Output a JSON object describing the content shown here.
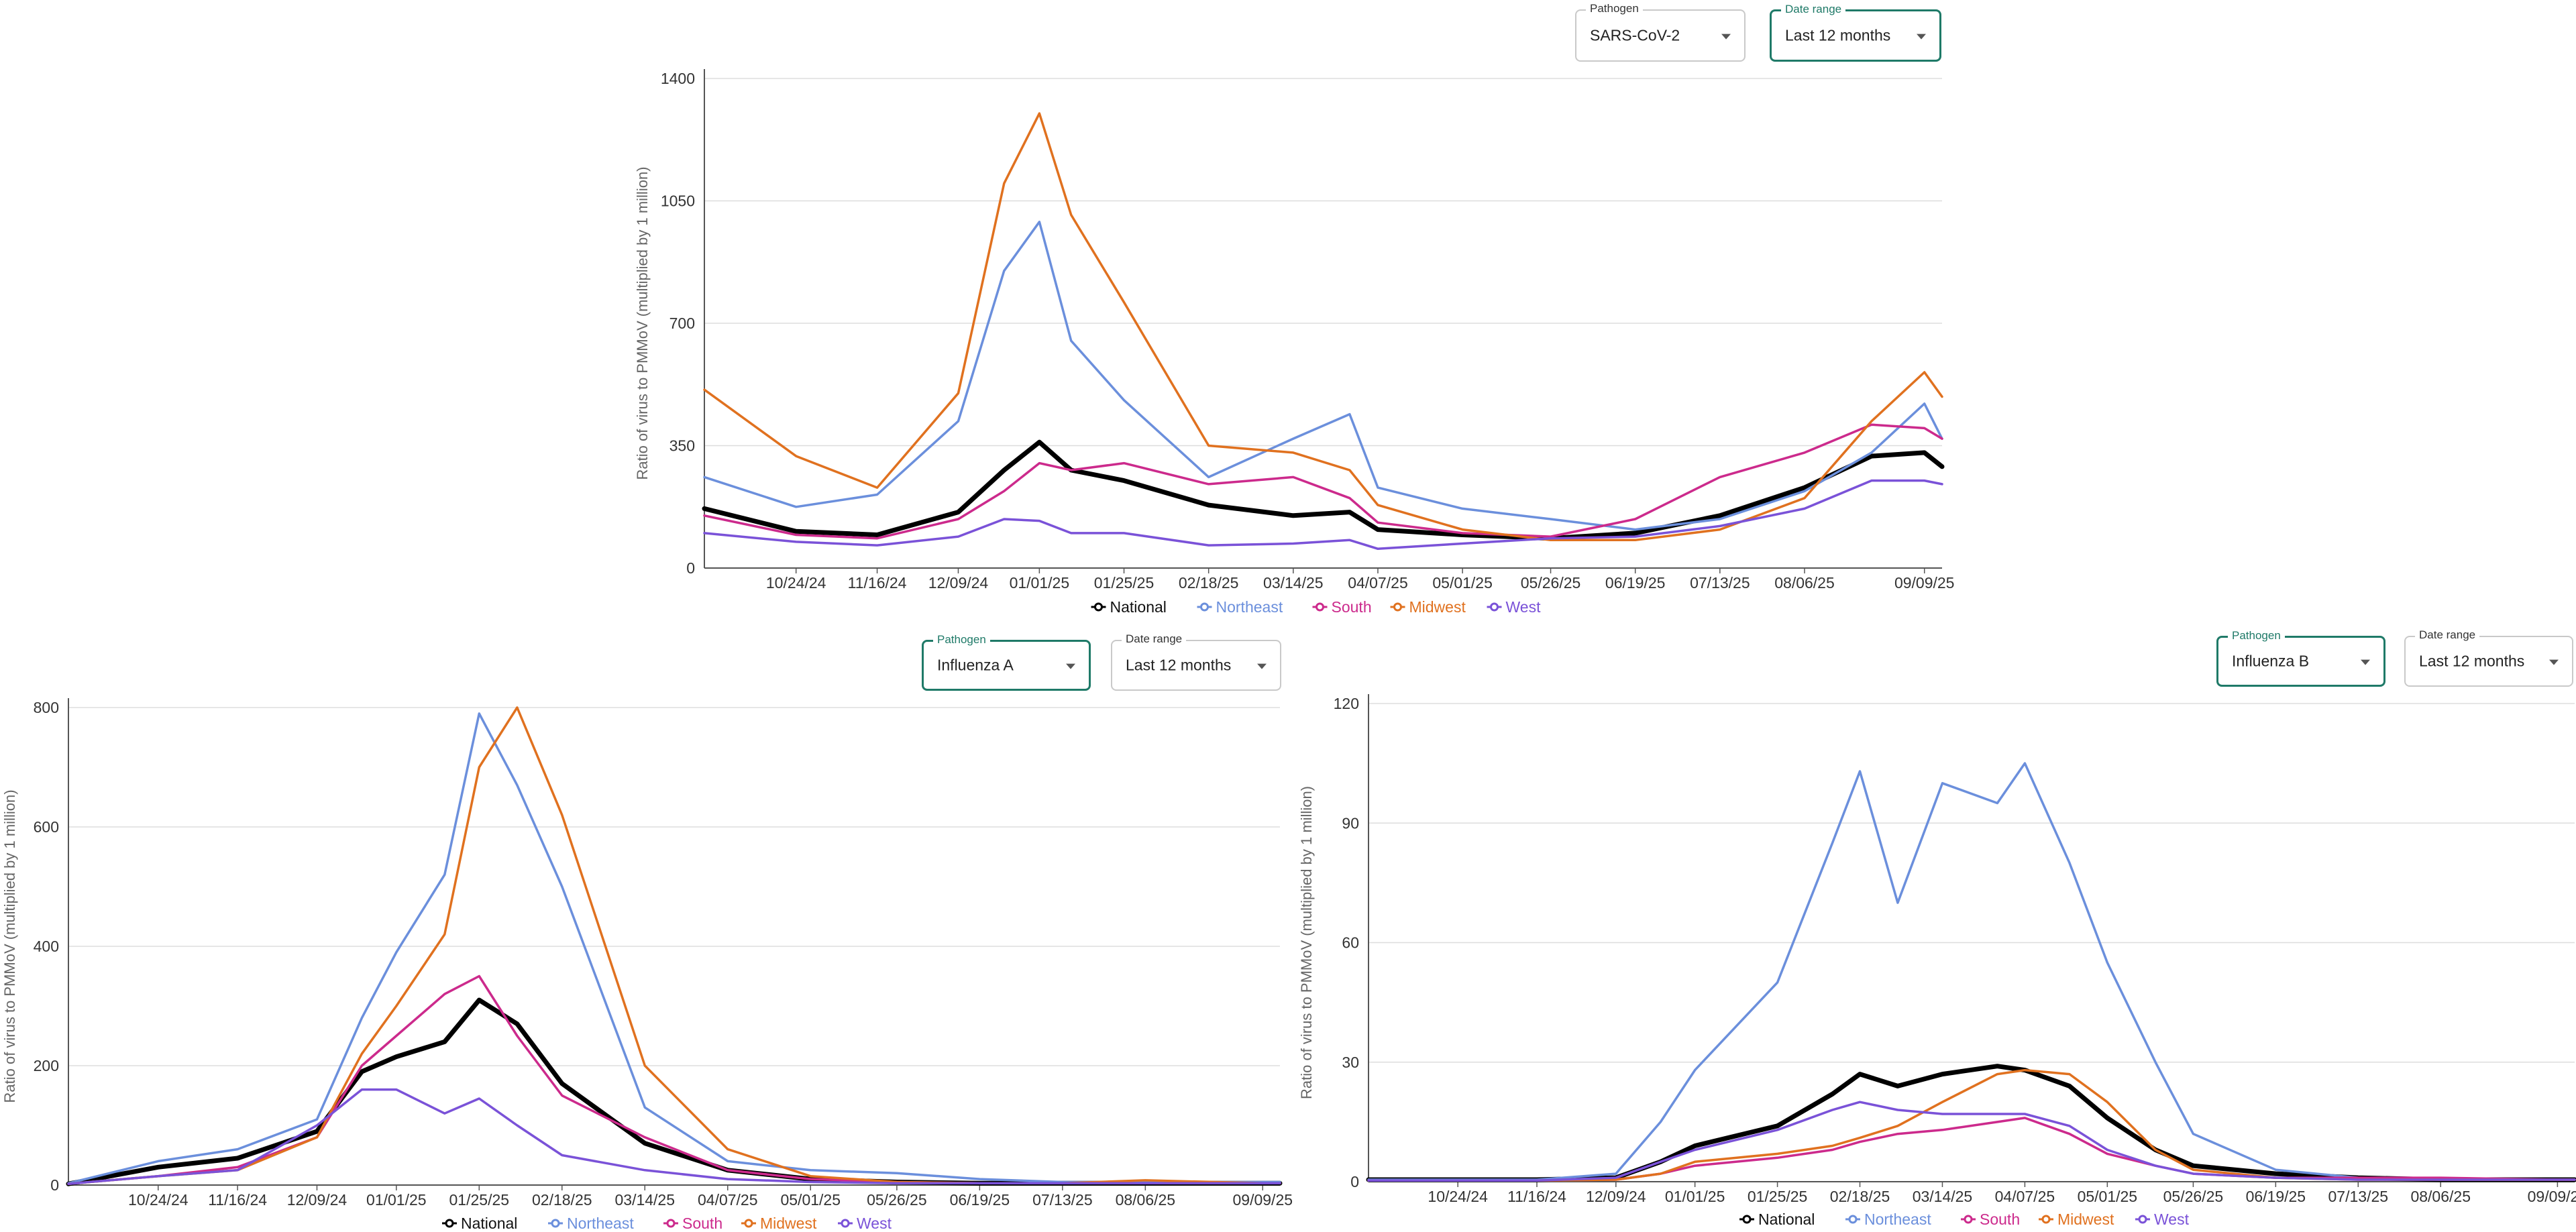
{
  "charts": [
    {
      "pathogen_label": "Pathogen",
      "pathogen_value": "SARS-CoV-2",
      "date_label": "Date range",
      "date_value": "Last 12 months"
    },
    {
      "pathogen_label": "Pathogen",
      "pathogen_value": "Influenza A",
      "date_label": "Date range",
      "date_value": "Last 12 months"
    },
    {
      "pathogen_label": "Pathogen",
      "pathogen_value": "Influenza B",
      "date_label": "Date range",
      "date_value": "Last 12 months"
    }
  ],
  "chart_data": [
    {
      "type": "line",
      "title": "",
      "ylabel": "Ratio of virus to PMMoV (multiplied by 1 million)",
      "xlabel": "",
      "x": [
        "09/28/24",
        "10/24/24",
        "11/16/24",
        "12/09/24",
        "12/22/24",
        "01/01/25",
        "01/10/25",
        "01/25/25",
        "02/18/25",
        "03/14/25",
        "03/30/25",
        "04/07/25",
        "05/01/25",
        "05/26/25",
        "06/19/25",
        "07/13/25",
        "08/06/25",
        "08/25/25",
        "09/09/25",
        "09/14/25"
      ],
      "x_ticks": [
        "10/24/24",
        "11/16/24",
        "12/09/24",
        "01/01/25",
        "01/25/25",
        "02/18/25",
        "03/14/25",
        "04/07/25",
        "05/01/25",
        "05/26/25",
        "06/19/25",
        "07/13/25",
        "08/06/25",
        "09/09/25"
      ],
      "ylim": [
        0,
        1400
      ],
      "y_ticks": [
        "0",
        "350",
        "700",
        "1050",
        "1400"
      ],
      "legend_position": "bottom",
      "grid": true,
      "series": [
        {
          "name": "National",
          "color": "#000000",
          "values": [
            170,
            105,
            95,
            160,
            280,
            360,
            280,
            250,
            180,
            150,
            160,
            110,
            95,
            85,
            100,
            150,
            230,
            320,
            330,
            290
          ]
        },
        {
          "name": "Northeast",
          "color": "#6b8fdc",
          "values": [
            260,
            175,
            210,
            420,
            850,
            990,
            650,
            480,
            260,
            370,
            440,
            230,
            170,
            140,
            110,
            140,
            220,
            330,
            470,
            370
          ]
        },
        {
          "name": "South",
          "color": "#cc2a8c",
          "values": [
            150,
            95,
            85,
            140,
            220,
            300,
            280,
            300,
            240,
            260,
            200,
            130,
            100,
            90,
            140,
            260,
            330,
            410,
            400,
            370
          ]
        },
        {
          "name": "Midwest",
          "color": "#e0711f",
          "values": [
            510,
            320,
            230,
            500,
            1100,
            1300,
            1010,
            760,
            350,
            330,
            280,
            180,
            110,
            80,
            80,
            110,
            200,
            420,
            560,
            490
          ]
        },
        {
          "name": "West",
          "color": "#7a52d8",
          "values": [
            100,
            75,
            65,
            90,
            140,
            135,
            100,
            100,
            65,
            70,
            80,
            55,
            70,
            85,
            90,
            120,
            170,
            250,
            250,
            240
          ]
        }
      ]
    },
    {
      "type": "line",
      "title": "",
      "ylabel": "Ratio of virus to PMMoV (multiplied by 1 million)",
      "xlabel": "",
      "x": [
        "09/28/24",
        "10/24/24",
        "11/16/24",
        "12/09/24",
        "12/22/24",
        "01/01/25",
        "01/15/25",
        "01/25/25",
        "02/05/25",
        "02/18/25",
        "03/14/25",
        "04/07/25",
        "05/01/25",
        "05/26/25",
        "06/19/25",
        "07/13/25",
        "08/06/25",
        "09/09/25",
        "09/14/25"
      ],
      "x_ticks": [
        "10/24/24",
        "11/16/24",
        "12/09/24",
        "01/01/25",
        "01/25/25",
        "02/18/25",
        "03/14/25",
        "04/07/25",
        "05/01/25",
        "05/26/25",
        "06/19/25",
        "07/13/25",
        "08/06/25",
        "09/09/25"
      ],
      "ylim": [
        0,
        800
      ],
      "y_ticks": [
        "0",
        "200",
        "400",
        "600",
        "800"
      ],
      "legend_position": "bottom",
      "grid": true,
      "series": [
        {
          "name": "National",
          "color": "#000000",
          "values": [
            2,
            30,
            45,
            90,
            190,
            215,
            240,
            310,
            270,
            170,
            70,
            25,
            10,
            5,
            3,
            3,
            3,
            3,
            3
          ]
        },
        {
          "name": "Northeast",
          "color": "#6b8fdc",
          "values": [
            3,
            40,
            60,
            110,
            280,
            390,
            520,
            790,
            670,
            500,
            130,
            40,
            25,
            20,
            10,
            5,
            5,
            5,
            5
          ]
        },
        {
          "name": "South",
          "color": "#cc2a8c",
          "values": [
            2,
            15,
            30,
            80,
            200,
            250,
            320,
            350,
            250,
            150,
            80,
            25,
            10,
            5,
            3,
            3,
            3,
            3,
            3
          ]
        },
        {
          "name": "Midwest",
          "color": "#e0711f",
          "values": [
            2,
            15,
            25,
            80,
            220,
            300,
            420,
            700,
            800,
            620,
            200,
            60,
            15,
            5,
            3,
            3,
            8,
            3,
            3
          ]
        },
        {
          "name": "West",
          "color": "#7a52d8",
          "values": [
            2,
            15,
            25,
            100,
            160,
            160,
            120,
            145,
            100,
            50,
            25,
            10,
            5,
            3,
            3,
            3,
            3,
            3,
            3
          ]
        }
      ]
    },
    {
      "type": "line",
      "title": "",
      "ylabel": "Ratio of virus to PMMoV (multiplied by 1 million)",
      "xlabel": "",
      "x": [
        "09/28/24",
        "10/24/24",
        "11/16/24",
        "12/09/24",
        "12/22/24",
        "01/01/25",
        "01/25/25",
        "02/10/25",
        "02/18/25",
        "03/01/25",
        "03/14/25",
        "03/30/25",
        "04/07/25",
        "04/20/25",
        "05/01/25",
        "05/15/25",
        "05/26/25",
        "06/19/25",
        "07/13/25",
        "08/06/25",
        "09/09/25",
        "09/14/25"
      ],
      "x_ticks": [
        "10/24/24",
        "11/16/24",
        "12/09/24",
        "01/01/25",
        "01/25/25",
        "02/18/25",
        "03/14/25",
        "04/07/25",
        "05/01/25",
        "05/26/25",
        "06/19/25",
        "07/13/25",
        "08/06/25",
        "09/09/25"
      ],
      "ylim": [
        0,
        120
      ],
      "y_ticks": [
        "0",
        "30",
        "60",
        "90",
        "120"
      ],
      "legend_position": "bottom",
      "grid": true,
      "series": [
        {
          "name": "National",
          "color": "#000000",
          "values": [
            0.5,
            0.5,
            0.5,
            1,
            5,
            9,
            14,
            22,
            27,
            24,
            27,
            29,
            28,
            24,
            16,
            8,
            4,
            2,
            1,
            0.5,
            0.5,
            0.5
          ]
        },
        {
          "name": "Northeast",
          "color": "#6b8fdc",
          "values": [
            0.5,
            0.5,
            0.5,
            2,
            15,
            28,
            50,
            85,
            103,
            70,
            100,
            95,
            105,
            80,
            55,
            30,
            12,
            3,
            1,
            0.5,
            0.5,
            0.5
          ]
        },
        {
          "name": "South",
          "color": "#cc2a8c",
          "values": [
            0.3,
            0.3,
            0.3,
            0.5,
            2,
            4,
            6,
            8,
            10,
            12,
            13,
            15,
            16,
            12,
            7,
            4,
            2,
            1,
            1,
            1,
            0.5,
            0.5
          ]
        },
        {
          "name": "Midwest",
          "color": "#e0711f",
          "values": [
            0.3,
            0.3,
            0.3,
            0.5,
            2,
            5,
            7,
            9,
            11,
            14,
            20,
            27,
            28,
            27,
            20,
            8,
            3,
            1,
            0.5,
            0.5,
            0.5,
            0.5
          ]
        },
        {
          "name": "West",
          "color": "#7a52d8",
          "values": [
            0.3,
            0.3,
            0.3,
            1,
            5,
            8,
            13,
            18,
            20,
            18,
            17,
            17,
            17,
            14,
            8,
            4,
            2,
            1,
            0.5,
            0.5,
            0.5,
            0.5
          ]
        }
      ]
    }
  ]
}
